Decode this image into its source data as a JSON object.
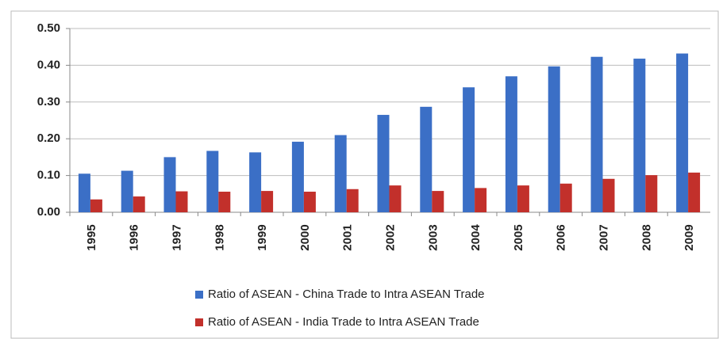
{
  "chart_data": {
    "type": "bar",
    "categories": [
      "1995",
      "1996",
      "1997",
      "1998",
      "1999",
      "2000",
      "2001",
      "2002",
      "2003",
      "2004",
      "2005",
      "2006",
      "2007",
      "2008",
      "2009"
    ],
    "series": [
      {
        "name": "Ratio of ASEAN - China Trade to Intra ASEAN Trade",
        "color": "#3b6fc6",
        "values": [
          0.105,
          0.113,
          0.15,
          0.167,
          0.163,
          0.192,
          0.21,
          0.265,
          0.287,
          0.34,
          0.37,
          0.397,
          0.423,
          0.418,
          0.432
        ]
      },
      {
        "name": "Ratio of ASEAN - India Trade to Intra ASEAN Trade",
        "color": "#c2302b",
        "values": [
          0.035,
          0.043,
          0.057,
          0.056,
          0.058,
          0.056,
          0.063,
          0.073,
          0.058,
          0.066,
          0.073,
          0.078,
          0.091,
          0.101,
          0.108
        ]
      }
    ],
    "ylim": [
      0,
      0.5
    ],
    "yticks": [
      {
        "value": 0,
        "label": "0.00"
      },
      {
        "value": 0.1,
        "label": "0.10"
      },
      {
        "value": 0.2,
        "label": "0.20"
      },
      {
        "value": 0.3,
        "label": "0.30"
      },
      {
        "value": 0.4,
        "label": "0.40"
      },
      {
        "value": 0.5,
        "label": "0.50"
      }
    ],
    "grid": true
  }
}
